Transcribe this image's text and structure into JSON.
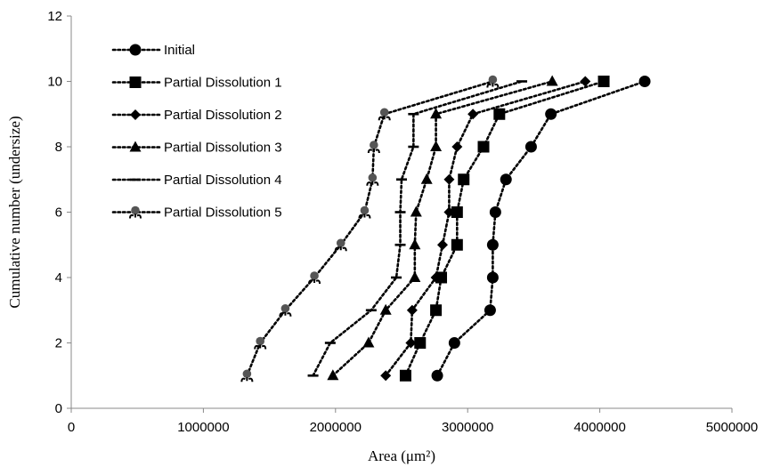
{
  "chart_data": {
    "type": "scatter",
    "title": "",
    "xlabel": "Area (μm²)",
    "ylabel": "Cumulative number (undersize)",
    "xlim": [
      0,
      5000000
    ],
    "ylim": [
      0,
      12
    ],
    "x_ticks": [
      "0",
      "1000000",
      "2000000",
      "3000000",
      "4000000",
      "5000000"
    ],
    "y_ticks": [
      "0",
      "2",
      "4",
      "6",
      "8",
      "10",
      "12"
    ],
    "grid": false,
    "legend_placement": "left",
    "line_style": "dotted",
    "series": [
      {
        "name": "Initial",
        "marker": "circle",
        "color": "#000000",
        "x": [
          2770000,
          2900000,
          3170000,
          3190000,
          3190000,
          3210000,
          3290000,
          3480000,
          3630000,
          4340000
        ],
        "y": [
          1,
          2,
          3,
          4,
          5,
          6,
          7,
          8,
          9,
          10
        ]
      },
      {
        "name": "Partial Dissolution 1",
        "marker": "square",
        "color": "#000000",
        "x": [
          2530000,
          2640000,
          2760000,
          2800000,
          2920000,
          2920000,
          2970000,
          3120000,
          3240000,
          4030000
        ],
        "y": [
          1,
          2,
          3,
          4,
          5,
          6,
          7,
          8,
          9,
          10
        ]
      },
      {
        "name": "Partial Dissolution 2",
        "marker": "diamond",
        "color": "#000000",
        "x": [
          2380000,
          2570000,
          2580000,
          2760000,
          2810000,
          2860000,
          2860000,
          2920000,
          3040000,
          3890000
        ],
        "y": [
          1,
          2,
          3,
          4,
          5,
          6,
          7,
          8,
          9,
          10
        ]
      },
      {
        "name": "Partial Dissolution 3",
        "marker": "triangle",
        "color": "#000000",
        "x": [
          1980000,
          2250000,
          2380000,
          2600000,
          2600000,
          2610000,
          2690000,
          2760000,
          2760000,
          3640000
        ],
        "y": [
          1,
          2,
          3,
          4,
          5,
          6,
          7,
          8,
          9,
          10
        ]
      },
      {
        "name": "Partial Dissolution 4",
        "marker": "dash",
        "color": "#000000",
        "x": [
          1830000,
          1960000,
          2270000,
          2460000,
          2490000,
          2490000,
          2500000,
          2590000,
          2590000,
          3410000
        ],
        "y": [
          1,
          2,
          3,
          4,
          5,
          6,
          7,
          8,
          9,
          10
        ]
      },
      {
        "name": "Partial Dissolution 5",
        "marker": "pin",
        "color": "#000000",
        "x": [
          1330000,
          1430000,
          1620000,
          1840000,
          2040000,
          2220000,
          2280000,
          2290000,
          2370000,
          3190000
        ],
        "y": [
          1,
          2,
          3,
          4,
          5,
          6,
          7,
          8,
          9,
          10
        ]
      }
    ]
  }
}
